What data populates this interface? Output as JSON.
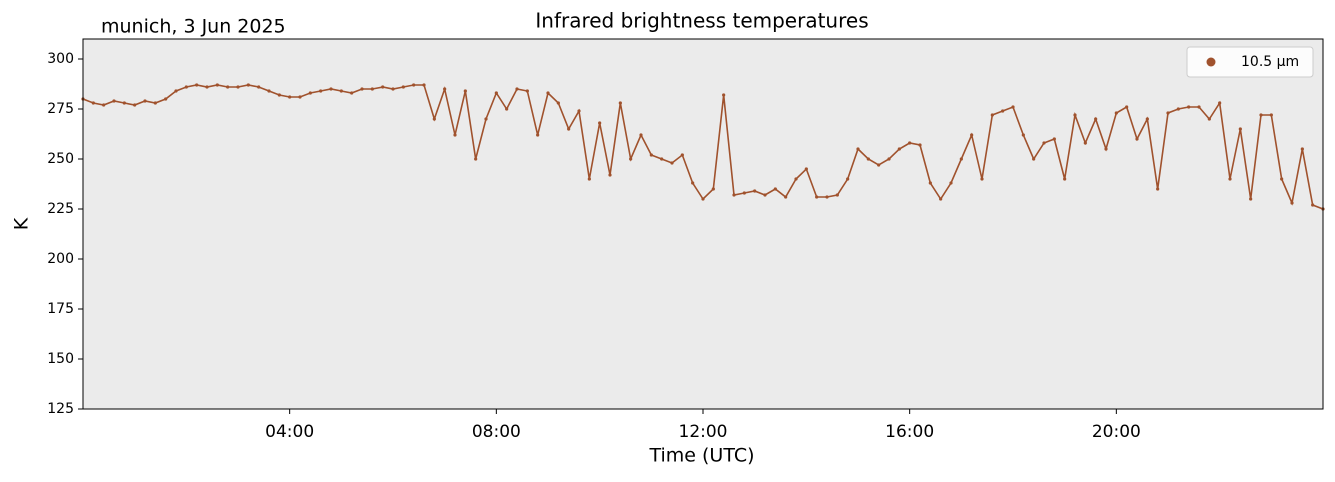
{
  "chart_data": {
    "type": "scatter",
    "title": "Infrared brightness temperatures",
    "subtitle": "munich, 3 Jun 2025",
    "x_label": "Time (UTC)",
    "y_label": "K",
    "xlim": [
      0,
      24
    ],
    "xticks": [
      {
        "value": 4,
        "label": "04:00"
      },
      {
        "value": 8,
        "label": "08:00"
      },
      {
        "value": 12,
        "label": "12:00"
      },
      {
        "value": 16,
        "label": "16:00"
      },
      {
        "value": 20,
        "label": "20:00"
      }
    ],
    "ylim": [
      125,
      310
    ],
    "yticks": [
      125,
      150,
      175,
      200,
      225,
      250,
      275,
      300
    ],
    "legend": "upper right",
    "x": [
      0,
      0.2,
      0.4,
      0.6,
      0.8,
      1,
      1.2,
      1.4,
      1.6,
      1.8,
      2,
      2.2,
      2.4,
      2.6,
      2.8,
      3,
      3.2,
      3.4,
      3.6,
      3.8,
      4,
      4.2,
      4.4,
      4.6,
      4.8,
      5,
      5.2,
      5.4,
      5.6,
      5.8,
      6,
      6.2,
      6.4,
      6.6,
      6.8,
      7,
      7.2,
      7.4,
      7.6,
      7.8,
      8,
      8.2,
      8.4,
      8.6,
      8.8,
      9,
      9.2,
      9.4,
      9.6,
      9.8,
      10,
      10.2,
      10.4,
      10.6,
      10.8,
      11,
      11.2,
      11.4,
      11.6,
      11.8,
      12,
      12.2,
      12.4,
      12.6,
      12.8,
      13,
      13.2,
      13.4,
      13.6,
      13.8,
      14,
      14.2,
      14.4,
      14.6,
      14.8,
      15,
      15.2,
      15.4,
      15.6,
      15.8,
      16,
      16.2,
      16.4,
      16.6,
      16.8,
      17,
      17.2,
      17.4,
      17.6,
      17.8,
      18,
      18.2,
      18.4,
      18.6,
      18.8,
      19,
      19.2,
      19.4,
      19.6,
      19.8,
      20,
      20.2,
      20.4,
      20.6,
      20.8,
      21,
      21.2,
      21.4,
      21.6,
      21.8,
      22,
      22.2,
      22.4,
      22.6,
      22.8,
      23,
      23.2,
      23.4,
      23.6,
      23.8,
      24
    ],
    "series": [
      {
        "name": "10.5 µm",
        "color": "#a0522d",
        "values": [
          280,
          278,
          277,
          279,
          278,
          277,
          279,
          278,
          280,
          284,
          286,
          287,
          286,
          287,
          286,
          286,
          287,
          286,
          284,
          282,
          281,
          281,
          283,
          284,
          285,
          284,
          283,
          285,
          285,
          286,
          285,
          286,
          287,
          287,
          270,
          285,
          262,
          284,
          250,
          270,
          283,
          275,
          285,
          284,
          262,
          283,
          278,
          265,
          274,
          240,
          268,
          242,
          278,
          250,
          262,
          252,
          250,
          248,
          252,
          238,
          230,
          235,
          282,
          232,
          233,
          234,
          232,
          235,
          231,
          240,
          245,
          231,
          231,
          232,
          240,
          255,
          250,
          247,
          250,
          255,
          258,
          257,
          238,
          230,
          238,
          250,
          262,
          240,
          272,
          274,
          276,
          262,
          250,
          258,
          260,
          240,
          272,
          258,
          270,
          255,
          273,
          276,
          260,
          270,
          235,
          273,
          275,
          276,
          276,
          270,
          278,
          240,
          265,
          230,
          272,
          272,
          240,
          228,
          255,
          227,
          225
        ]
      }
    ]
  }
}
